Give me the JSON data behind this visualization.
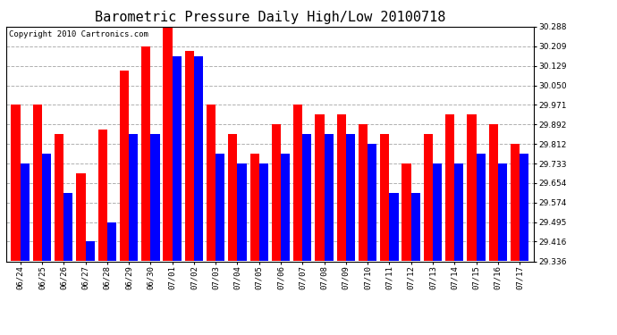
{
  "title": "Barometric Pressure Daily High/Low 20100718",
  "copyright": "Copyright 2010 Cartronics.com",
  "categories": [
    "06/24",
    "06/25",
    "06/26",
    "06/27",
    "06/28",
    "06/29",
    "06/30",
    "07/01",
    "07/02",
    "07/03",
    "07/04",
    "07/05",
    "07/06",
    "07/07",
    "07/08",
    "07/09",
    "07/10",
    "07/11",
    "07/12",
    "07/13",
    "07/14",
    "07/15",
    "07/16",
    "07/17"
  ],
  "highs": [
    29.971,
    29.971,
    29.852,
    29.695,
    29.872,
    30.11,
    30.209,
    30.288,
    30.19,
    29.971,
    29.852,
    29.773,
    29.892,
    29.971,
    29.931,
    29.931,
    29.892,
    29.852,
    29.733,
    29.852,
    29.931,
    29.931,
    29.892,
    29.812
  ],
  "lows": [
    29.733,
    29.773,
    29.614,
    29.416,
    29.495,
    29.852,
    29.852,
    30.17,
    30.17,
    29.773,
    29.733,
    29.733,
    29.773,
    29.852,
    29.852,
    29.852,
    29.812,
    29.614,
    29.614,
    29.733,
    29.733,
    29.773,
    29.733,
    29.773
  ],
  "high_color": "#ff0000",
  "low_color": "#0000ff",
  "bg_color": "#ffffff",
  "grid_color": "#b0b0b0",
  "ylim_min": 29.336,
  "ylim_max": 30.288,
  "yticks": [
    29.336,
    29.416,
    29.495,
    29.574,
    29.654,
    29.733,
    29.812,
    29.892,
    29.971,
    30.05,
    30.129,
    30.209,
    30.288
  ],
  "title_fontsize": 11,
  "tick_fontsize": 6.5,
  "copyright_fontsize": 6.5
}
